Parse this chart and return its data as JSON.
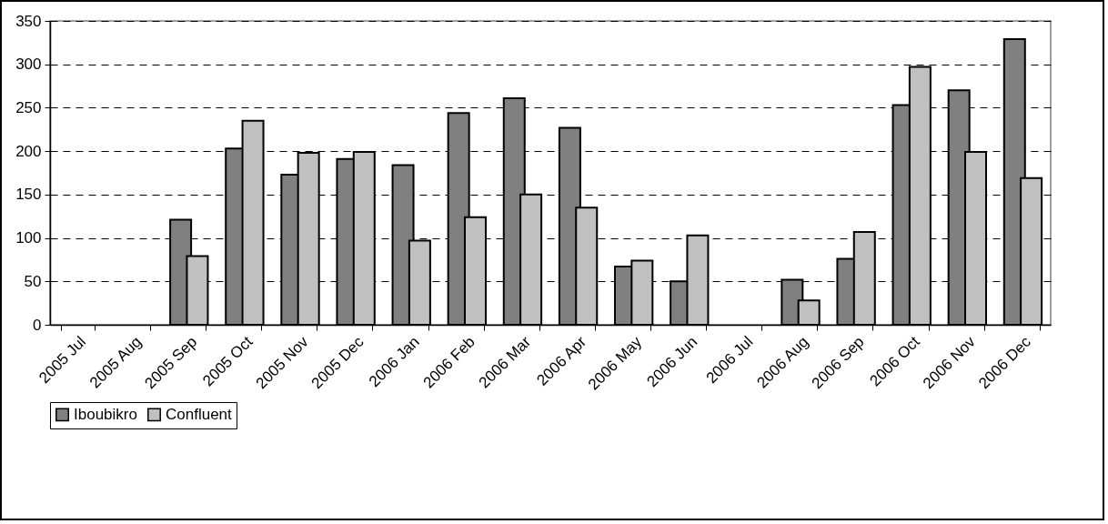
{
  "chart_data": {
    "type": "bar",
    "categories": [
      "2005 Jul",
      "2005 Aug",
      "2005 Sep",
      "2005 Oct",
      "2005 Nov",
      "2005 Dec",
      "2006 Jan",
      "2006 Feb",
      "2006 Mar",
      "2006 Apr",
      "2006 May",
      "2006 Jun",
      "2006 Jul",
      "2006 Aug",
      "2006 Sep",
      "2006 Oct",
      "2006 Nov",
      "2006 Dec"
    ],
    "series": [
      {
        "name": "Iboubikro",
        "color": "#808080",
        "values": [
          null,
          null,
          121,
          203,
          173,
          191,
          184,
          244,
          261,
          227,
          67,
          50,
          null,
          52,
          76,
          253,
          270,
          329
        ]
      },
      {
        "name": "Confluent",
        "color": "#c0c0c0",
        "values": [
          null,
          null,
          79,
          235,
          198,
          199,
          97,
          124,
          150,
          135,
          74,
          103,
          null,
          28,
          107,
          297,
          199,
          169
        ]
      }
    ],
    "ylim": [
      0,
      350
    ],
    "yticks": [
      0,
      50,
      100,
      150,
      200,
      250,
      300,
      350
    ],
    "grid": "y",
    "legend": "bottom"
  }
}
